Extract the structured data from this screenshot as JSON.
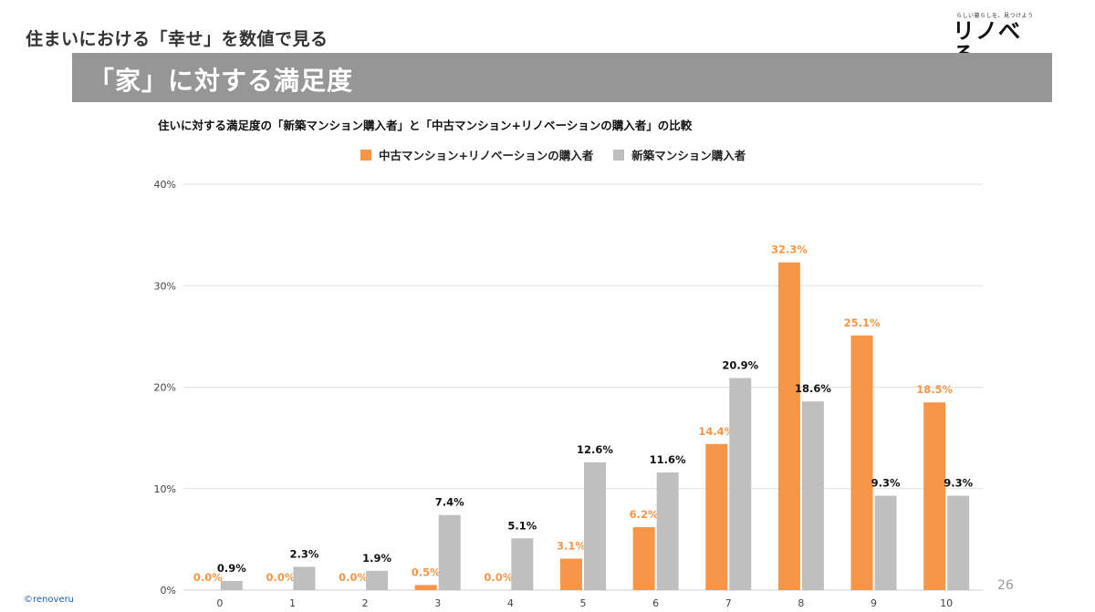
{
  "header": {
    "section_title": "住まいにおける「幸せ」を数値で見る",
    "logo_tagline": "らしい暮らしを、見つけよう",
    "logo_text": "リノべる。"
  },
  "banner": {
    "title": "「家」に対する満足度"
  },
  "footer": {
    "copyright": "©renoveru",
    "page_number": "26"
  },
  "colors": {
    "orange": "#f79646",
    "gray": "#bfbfbf",
    "banner": "#969696"
  },
  "chart_data": {
    "type": "bar",
    "title": "住いに対する満足度の「新築マンション購入者」と「中古マンション+リノベーションの購入者」の比較",
    "xlabel": "",
    "ylabel": "",
    "categories": [
      "0",
      "1",
      "2",
      "3",
      "4",
      "5",
      "6",
      "7",
      "8",
      "9",
      "10"
    ],
    "ylim": [
      0,
      40
    ],
    "yticks": [
      0,
      10,
      20,
      30,
      40
    ],
    "ytick_labels": [
      "0%",
      "10%",
      "20%",
      "30%",
      "40%"
    ],
    "grid": true,
    "legend_position": "top",
    "series": [
      {
        "name": "中古マンション+リノベーションの購入者",
        "color": "#f79646",
        "values": [
          0.0,
          0.0,
          0.0,
          0.5,
          0.0,
          3.1,
          6.2,
          14.4,
          32.3,
          25.1,
          18.5
        ],
        "labels": [
          "0.0%",
          "0.0%",
          "0.0%",
          "0.5%",
          "0.0%",
          "3.1%",
          "6.2%",
          "14.4%",
          "32.3%",
          "25.1%",
          "18.5%"
        ]
      },
      {
        "name": "新築マンション購入者",
        "color": "#bfbfbf",
        "values": [
          0.9,
          2.3,
          1.9,
          7.4,
          5.1,
          12.6,
          11.6,
          20.9,
          18.6,
          9.3,
          9.3
        ],
        "labels": [
          "0.9%",
          "2.3%",
          "1.9%",
          "7.4%",
          "5.1%",
          "12.6%",
          "11.6%",
          "20.9%",
          "18.6%",
          "9.3%",
          "9.3%"
        ]
      }
    ]
  }
}
